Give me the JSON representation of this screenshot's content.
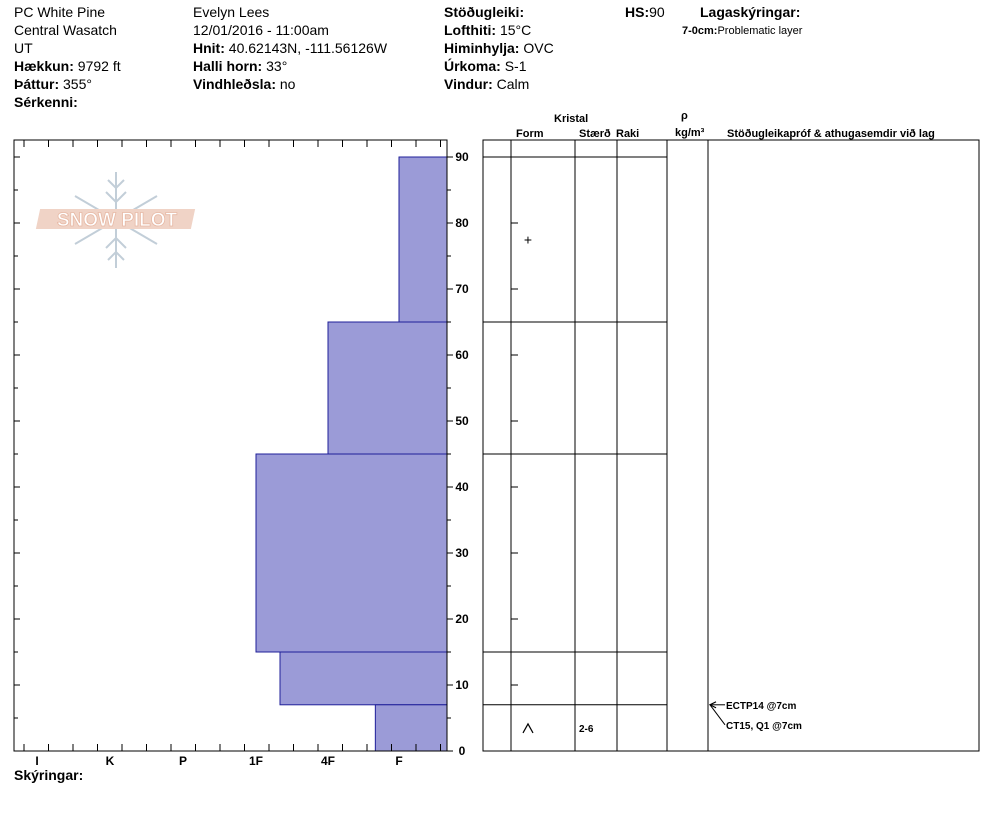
{
  "header": {
    "location": "PC White Pine",
    "range": "Central Wasatch",
    "state": "UT",
    "elevation_label": "Hækkun:",
    "elevation": "9792 ft",
    "aspect_label": "Þáttur:",
    "aspect": "355°",
    "features_label": "Sérkenni:",
    "observer": "Evelyn Lees",
    "datetime": "12/01/2016 - 11:00am",
    "coords_label": "Hnit:",
    "coords": "40.62143N, -111.56126W",
    "slope_label": "Halli horn:",
    "slope": "33°",
    "wind_loading_label": "Vindhleðsla:",
    "wind_loading": "no",
    "stability_label": "Stöðugleiki:",
    "air_temp_label": "Lofthiti:",
    "air_temp": "15°C",
    "sky_label": "Himinhylja:",
    "sky": "OVC",
    "precip_label": "Úrkoma:",
    "precip": "S-1",
    "wind_label": "Vindur:",
    "wind": "Calm",
    "hs_label": "HS:",
    "hs": "90",
    "legend_label": "Lagaskýringar:",
    "legend_depth": "7-0cm:",
    "legend_desc": "Problematic layer"
  },
  "columns": {
    "crystal": "Kristal",
    "form": "Form",
    "size": "Stærð",
    "moisture": "Raki",
    "rho": "ρ",
    "density_unit": "kg/m³",
    "tests": "Stöðugleikapróf & athugasemdir við lag"
  },
  "footer": {
    "notes_label": "Skýringar:"
  },
  "logo": {
    "text": "SNOW PILOT"
  },
  "chart_data": {
    "type": "bar",
    "y_label": "",
    "ylim": [
      0,
      90
    ],
    "y_ticks": [
      0,
      10,
      20,
      30,
      40,
      50,
      60,
      70,
      80,
      90
    ],
    "hardness_ticks": [
      "I",
      "K",
      "P",
      "1F",
      "4F",
      "F"
    ],
    "layers": [
      {
        "top": 90,
        "bottom": 65,
        "hardness": "F"
      },
      {
        "top": 65,
        "bottom": 45,
        "hardness": "4F"
      },
      {
        "top": 45,
        "bottom": 15,
        "hardness": "1F"
      },
      {
        "top": 15,
        "bottom": 7,
        "hardness": "1F-"
      },
      {
        "top": 7,
        "bottom": 0,
        "hardness": "F+"
      }
    ],
    "grain_symbols": [
      {
        "depth": 77.5,
        "symbol": "+",
        "size": ""
      },
      {
        "depth": 3.5,
        "symbol": "^",
        "size": "2-6"
      }
    ],
    "tests": [
      {
        "label": "ECTP14 @7cm",
        "depth": 7
      },
      {
        "label": "CT15, Q1 @7cm",
        "depth": 7
      }
    ]
  }
}
